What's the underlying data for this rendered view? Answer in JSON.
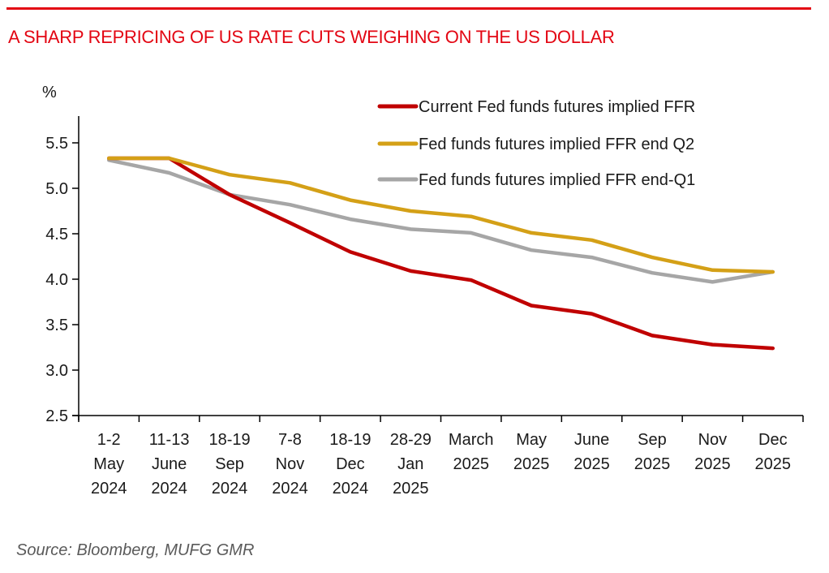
{
  "header": {
    "title": "A SHARP REPRICING OF US RATE CUTS WEIGHING ON THE US DOLLAR"
  },
  "footer": {
    "source": "Source: Bloomberg, MUFG GMR"
  },
  "colors": {
    "accent": "#e30613",
    "series_current": "#c00000",
    "series_q2": "#d4a017",
    "series_q1": "#a6a6a6"
  },
  "chart_data": {
    "type": "line",
    "title": "A SHARP REPRICING OF US RATE CUTS WEIGHING ON THE US DOLLAR",
    "xlabel": "",
    "ylabel": "%",
    "ylim": [
      2.5,
      5.8
    ],
    "yticks": [
      2.5,
      3.0,
      3.5,
      4.0,
      4.5,
      5.0,
      5.5
    ],
    "ytick_labels": [
      "2.5",
      "3.0",
      "3.5",
      "4.0",
      "4.5",
      "5.0",
      "5.5"
    ],
    "grid": false,
    "legend_position": "top-right",
    "categories": [
      [
        "1-2",
        "May",
        "2024"
      ],
      [
        "11-13",
        "June",
        "2024"
      ],
      [
        "18-19",
        "Sep",
        "2024"
      ],
      [
        "7-8",
        "Nov",
        "2024"
      ],
      [
        "18-19",
        "Dec",
        "2024"
      ],
      [
        "28-29",
        "Jan",
        "2025"
      ],
      [
        "March",
        "2025"
      ],
      [
        "May",
        "2025"
      ],
      [
        "June",
        "2025"
      ],
      [
        "Sep",
        "2025"
      ],
      [
        "Nov",
        "2025"
      ],
      [
        "Dec",
        "2025"
      ]
    ],
    "series": [
      {
        "name": "Current Fed funds futures implied FFR",
        "color": "#c00000",
        "values": [
          5.33,
          5.33,
          4.93,
          4.62,
          4.3,
          4.09,
          3.99,
          3.71,
          3.62,
          3.38,
          3.28,
          3.24
        ]
      },
      {
        "name": "Fed funds futures implied FFR end Q2",
        "color": "#d4a017",
        "values": [
          5.33,
          5.33,
          5.15,
          5.06,
          4.87,
          4.75,
          4.69,
          4.51,
          4.43,
          4.24,
          4.1,
          4.08
        ]
      },
      {
        "name": "Fed funds futures implied FFR end-Q1",
        "color": "#a6a6a6",
        "values": [
          5.31,
          5.17,
          4.93,
          4.82,
          4.66,
          4.55,
          4.51,
          4.32,
          4.24,
          4.07,
          3.97,
          4.08
        ]
      }
    ]
  }
}
